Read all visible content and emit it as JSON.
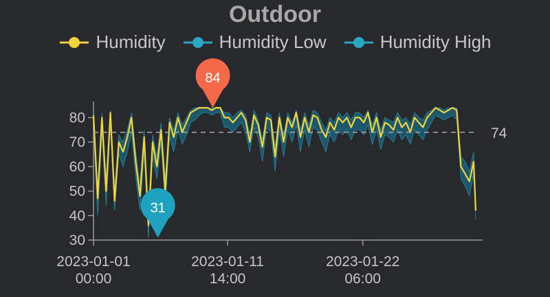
{
  "chart_data": {
    "type": "line",
    "title": "Outdoor",
    "legend_placement": "top",
    "ylim": [
      30,
      86
    ],
    "yticks": [
      30,
      40,
      50,
      60,
      70,
      80
    ],
    "x_ticks": [
      "2023-01-01 00:00",
      "2023-01-11 14:00",
      "2023-01-22 06:00"
    ],
    "x_tick_labels": [
      {
        "date": "2023-01-01",
        "time": "00:00"
      },
      {
        "date": "2023-01-11",
        "time": "14:00"
      },
      {
        "date": "2023-01-22",
        "time": "06:00"
      }
    ],
    "x_range": [
      "2023-01-01 00:00",
      "2023-01-31 04:00"
    ],
    "reference_line": {
      "value": 74,
      "label": "74",
      "style": "dashed"
    },
    "markers": [
      {
        "type": "max",
        "value": 84,
        "label": "84",
        "x": "2023-01-10 10:00",
        "color": "#f4694a"
      },
      {
        "type": "min",
        "value": 31,
        "label": "31",
        "x": "2023-01-06 02:00",
        "color": "#1ea2c0"
      }
    ],
    "colors": {
      "humidity": "#f2d33e",
      "low": "#2aa7c4",
      "high": "#2aa7c4",
      "band": "#1c5f78"
    },
    "series": [
      {
        "name": "Humidity",
        "x": [
          "2023-01-01 00:00",
          "2023-01-01 08:00",
          "2023-01-01 16:00",
          "2023-01-02 00:00",
          "2023-01-02 08:00",
          "2023-01-02 16:00",
          "2023-01-03 00:00",
          "2023-01-03 08:00",
          "2023-01-03 16:00",
          "2023-01-04 00:00",
          "2023-01-04 08:00",
          "2023-01-04 16:00",
          "2023-01-05 00:00",
          "2023-01-05 08:00",
          "2023-01-05 16:00",
          "2023-01-06 00:00",
          "2023-01-06 08:00",
          "2023-01-06 16:00",
          "2023-01-07 00:00",
          "2023-01-07 08:00",
          "2023-01-07 16:00",
          "2023-01-08 00:00",
          "2023-01-08 08:00",
          "2023-01-08 16:00",
          "2023-01-09 00:00",
          "2023-01-09 08:00",
          "2023-01-09 16:00",
          "2023-01-10 00:00",
          "2023-01-10 08:00",
          "2023-01-10 16:00",
          "2023-01-11 00:00",
          "2023-01-11 08:00",
          "2023-01-11 16:00",
          "2023-01-12 00:00",
          "2023-01-12 08:00",
          "2023-01-12 16:00",
          "2023-01-13 00:00",
          "2023-01-13 08:00",
          "2023-01-13 16:00",
          "2023-01-14 00:00",
          "2023-01-14 08:00",
          "2023-01-14 16:00",
          "2023-01-15 00:00",
          "2023-01-15 08:00",
          "2023-01-15 16:00",
          "2023-01-16 00:00",
          "2023-01-16 08:00",
          "2023-01-16 16:00",
          "2023-01-17 00:00",
          "2023-01-17 08:00",
          "2023-01-17 16:00",
          "2023-01-18 00:00",
          "2023-01-18 08:00",
          "2023-01-18 16:00",
          "2023-01-19 00:00",
          "2023-01-19 08:00",
          "2023-01-19 16:00",
          "2023-01-20 00:00",
          "2023-01-20 08:00",
          "2023-01-20 16:00",
          "2023-01-21 00:00",
          "2023-01-21 08:00",
          "2023-01-21 16:00",
          "2023-01-22 00:00",
          "2023-01-22 08:00",
          "2023-01-22 16:00",
          "2023-01-23 00:00",
          "2023-01-23 08:00",
          "2023-01-23 16:00",
          "2023-01-24 00:00",
          "2023-01-24 08:00",
          "2023-01-24 16:00",
          "2023-01-25 00:00",
          "2023-01-25 08:00",
          "2023-01-25 16:00",
          "2023-01-26 00:00",
          "2023-01-26 08:00",
          "2023-01-26 16:00",
          "2023-01-27 00:00",
          "2023-01-27 08:00",
          "2023-01-27 16:00",
          "2023-01-28 00:00",
          "2023-01-28 08:00",
          "2023-01-28 16:00",
          "2023-01-29 00:00",
          "2023-01-29 08:00",
          "2023-01-29 16:00",
          "2023-01-30 00:00",
          "2023-01-30 08:00",
          "2023-01-30 16:00",
          "2023-01-31 00:00",
          "2023-01-31 04:00"
        ],
        "values": [
          81,
          47,
          80,
          50,
          82,
          46,
          70,
          66,
          72,
          80,
          62,
          48,
          72,
          36,
          70,
          60,
          75,
          50,
          78,
          72,
          80,
          74,
          78,
          82,
          83,
          84,
          84,
          84,
          83,
          84,
          84,
          80,
          80,
          78,
          80,
          82,
          79,
          70,
          81,
          77,
          68,
          80,
          79,
          64,
          80,
          70,
          80,
          76,
          82,
          72,
          80,
          74,
          81,
          80,
          75,
          72,
          78,
          75,
          80,
          78,
          80,
          76,
          80,
          80,
          78,
          82,
          74,
          80,
          72,
          78,
          77,
          75,
          80,
          76,
          78,
          74,
          80,
          78,
          76,
          80,
          82,
          84,
          83,
          82,
          83,
          84,
          83,
          60,
          57,
          54,
          62,
          42
        ]
      },
      {
        "name": "Humidity Low",
        "x": [
          "2023-01-01 00:00",
          "2023-01-01 08:00",
          "2023-01-01 16:00",
          "2023-01-02 00:00",
          "2023-01-02 08:00",
          "2023-01-02 16:00",
          "2023-01-03 00:00",
          "2023-01-03 08:00",
          "2023-01-03 16:00",
          "2023-01-04 00:00",
          "2023-01-04 08:00",
          "2023-01-04 16:00",
          "2023-01-05 00:00",
          "2023-01-05 08:00",
          "2023-01-05 16:00",
          "2023-01-06 00:00",
          "2023-01-06 08:00",
          "2023-01-06 16:00",
          "2023-01-07 00:00",
          "2023-01-07 08:00",
          "2023-01-07 16:00",
          "2023-01-08 00:00",
          "2023-01-08 08:00",
          "2023-01-08 16:00",
          "2023-01-09 00:00",
          "2023-01-09 08:00",
          "2023-01-09 16:00",
          "2023-01-10 00:00",
          "2023-01-10 08:00",
          "2023-01-10 16:00",
          "2023-01-11 00:00",
          "2023-01-11 08:00",
          "2023-01-11 16:00",
          "2023-01-12 00:00",
          "2023-01-12 08:00",
          "2023-01-12 16:00",
          "2023-01-13 00:00",
          "2023-01-13 08:00",
          "2023-01-13 16:00",
          "2023-01-14 00:00",
          "2023-01-14 08:00",
          "2023-01-14 16:00",
          "2023-01-15 00:00",
          "2023-01-15 08:00",
          "2023-01-15 16:00",
          "2023-01-16 00:00",
          "2023-01-16 08:00",
          "2023-01-16 16:00",
          "2023-01-17 00:00",
          "2023-01-17 08:00",
          "2023-01-17 16:00",
          "2023-01-18 00:00",
          "2023-01-18 08:00",
          "2023-01-18 16:00",
          "2023-01-19 00:00",
          "2023-01-19 08:00",
          "2023-01-19 16:00",
          "2023-01-20 00:00",
          "2023-01-20 08:00",
          "2023-01-20 16:00",
          "2023-01-21 00:00",
          "2023-01-21 08:00",
          "2023-01-21 16:00",
          "2023-01-22 00:00",
          "2023-01-22 08:00",
          "2023-01-22 16:00",
          "2023-01-23 00:00",
          "2023-01-23 08:00",
          "2023-01-23 16:00",
          "2023-01-24 00:00",
          "2023-01-24 08:00",
          "2023-01-24 16:00",
          "2023-01-25 00:00",
          "2023-01-25 08:00",
          "2023-01-25 16:00",
          "2023-01-26 00:00",
          "2023-01-26 08:00",
          "2023-01-26 16:00",
          "2023-01-27 00:00",
          "2023-01-27 08:00",
          "2023-01-27 16:00",
          "2023-01-28 00:00",
          "2023-01-28 08:00",
          "2023-01-28 16:00",
          "2023-01-29 00:00",
          "2023-01-29 08:00",
          "2023-01-29 16:00",
          "2023-01-30 00:00",
          "2023-01-30 08:00",
          "2023-01-30 16:00",
          "2023-01-31 00:00",
          "2023-01-31 04:00"
        ],
        "values": [
          76,
          40,
          74,
          44,
          77,
          42,
          65,
          60,
          66,
          74,
          56,
          42,
          66,
          31,
          64,
          55,
          70,
          44,
          72,
          66,
          75,
          69,
          73,
          78,
          79,
          81,
          82,
          82,
          81,
          82,
          82,
          76,
          76,
          74,
          76,
          78,
          74,
          66,
          76,
          72,
          62,
          76,
          74,
          58,
          75,
          64,
          75,
          70,
          77,
          66,
          75,
          68,
          76,
          75,
          70,
          66,
          73,
          70,
          75,
          73,
          75,
          71,
          75,
          75,
          73,
          77,
          69,
          75,
          67,
          73,
          72,
          70,
          75,
          71,
          73,
          69,
          75,
          73,
          71,
          75,
          78,
          81,
          80,
          79,
          80,
          81,
          79,
          55,
          52,
          48,
          57,
          38
        ]
      },
      {
        "name": "Humidity High",
        "x": [
          "2023-01-01 00:00",
          "2023-01-01 08:00",
          "2023-01-01 16:00",
          "2023-01-02 00:00",
          "2023-01-02 08:00",
          "2023-01-02 16:00",
          "2023-01-03 00:00",
          "2023-01-03 08:00",
          "2023-01-03 16:00",
          "2023-01-04 00:00",
          "2023-01-04 08:00",
          "2023-01-04 16:00",
          "2023-01-05 00:00",
          "2023-01-05 08:00",
          "2023-01-05 16:00",
          "2023-01-06 00:00",
          "2023-01-06 08:00",
          "2023-01-06 16:00",
          "2023-01-07 00:00",
          "2023-01-07 08:00",
          "2023-01-07 16:00",
          "2023-01-08 00:00",
          "2023-01-08 08:00",
          "2023-01-08 16:00",
          "2023-01-09 00:00",
          "2023-01-09 08:00",
          "2023-01-09 16:00",
          "2023-01-10 00:00",
          "2023-01-10 08:00",
          "2023-01-10 16:00",
          "2023-01-11 00:00",
          "2023-01-11 08:00",
          "2023-01-11 16:00",
          "2023-01-12 00:00",
          "2023-01-12 08:00",
          "2023-01-12 16:00",
          "2023-01-13 00:00",
          "2023-01-13 08:00",
          "2023-01-13 16:00",
          "2023-01-14 00:00",
          "2023-01-14 08:00",
          "2023-01-14 16:00",
          "2023-01-15 00:00",
          "2023-01-15 08:00",
          "2023-01-15 16:00",
          "2023-01-16 00:00",
          "2023-01-16 08:00",
          "2023-01-16 16:00",
          "2023-01-17 00:00",
          "2023-01-17 08:00",
          "2023-01-17 16:00",
          "2023-01-18 00:00",
          "2023-01-18 08:00",
          "2023-01-18 16:00",
          "2023-01-19 00:00",
          "2023-01-19 08:00",
          "2023-01-19 16:00",
          "2023-01-20 00:00",
          "2023-01-20 08:00",
          "2023-01-20 16:00",
          "2023-01-21 00:00",
          "2023-01-21 08:00",
          "2023-01-21 16:00",
          "2023-01-22 00:00",
          "2023-01-22 08:00",
          "2023-01-22 16:00",
          "2023-01-23 00:00",
          "2023-01-23 08:00",
          "2023-01-23 16:00",
          "2023-01-24 00:00",
          "2023-01-24 08:00",
          "2023-01-24 16:00",
          "2023-01-25 00:00",
          "2023-01-25 08:00",
          "2023-01-25 16:00",
          "2023-01-26 00:00",
          "2023-01-26 08:00",
          "2023-01-26 16:00",
          "2023-01-27 00:00",
          "2023-01-27 08:00",
          "2023-01-27 16:00",
          "2023-01-28 00:00",
          "2023-01-28 08:00",
          "2023-01-28 16:00",
          "2023-01-29 00:00",
          "2023-01-29 08:00",
          "2023-01-29 16:00",
          "2023-01-30 00:00",
          "2023-01-30 08:00",
          "2023-01-30 16:00",
          "2023-01-31 00:00",
          "2023-01-31 04:00"
        ],
        "values": [
          83,
          52,
          82,
          55,
          83,
          51,
          73,
          70,
          75,
          82,
          66,
          53,
          75,
          41,
          73,
          64,
          78,
          55,
          80,
          75,
          82,
          77,
          80,
          83,
          84,
          84,
          84,
          84,
          84,
          84,
          84,
          82,
          82,
          80,
          82,
          83,
          81,
          73,
          83,
          79,
          71,
          82,
          81,
          68,
          82,
          73,
          82,
          78,
          83,
          75,
          82,
          77,
          83,
          82,
          78,
          75,
          80,
          78,
          82,
          80,
          82,
          79,
          82,
          82,
          80,
          83,
          77,
          82,
          75,
          80,
          79,
          78,
          82,
          79,
          80,
          77,
          82,
          80,
          79,
          82,
          83,
          84,
          84,
          83,
          84,
          84,
          84,
          64,
          62,
          58,
          66,
          46
        ]
      }
    ]
  }
}
